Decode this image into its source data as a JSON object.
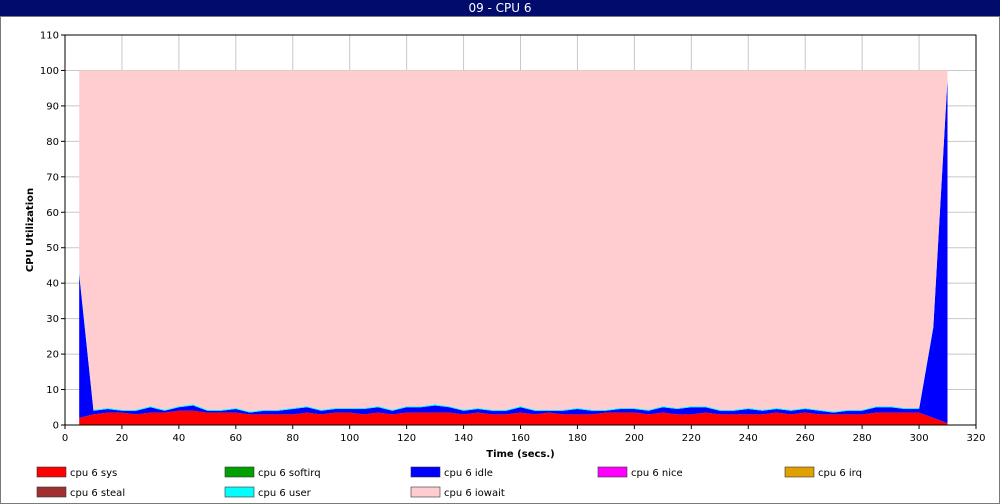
{
  "window": {
    "title": "09 - CPU 6"
  },
  "chart_data": {
    "type": "area",
    "stacked": true,
    "xlabel": "Time (secs.)",
    "ylabel": "CPU Utilization",
    "xlim": [
      0,
      320
    ],
    "ylim": [
      0,
      110
    ],
    "xticks": [
      0,
      20,
      40,
      60,
      80,
      100,
      120,
      140,
      160,
      180,
      200,
      220,
      240,
      260,
      280,
      300,
      320
    ],
    "yticks": [
      0,
      10,
      20,
      30,
      40,
      50,
      60,
      70,
      80,
      90,
      100,
      110
    ],
    "grid": true,
    "legend_position": "bottom",
    "x": [
      5,
      10,
      15,
      20,
      25,
      30,
      35,
      40,
      45,
      50,
      55,
      60,
      65,
      70,
      75,
      80,
      85,
      90,
      95,
      100,
      105,
      110,
      115,
      120,
      125,
      130,
      135,
      140,
      145,
      150,
      155,
      160,
      165,
      170,
      175,
      180,
      185,
      190,
      195,
      200,
      205,
      210,
      215,
      220,
      225,
      230,
      235,
      240,
      245,
      250,
      255,
      260,
      265,
      270,
      275,
      280,
      285,
      290,
      295,
      300,
      305,
      310
    ],
    "series": [
      {
        "name": "cpu 6 sys",
        "color": "#ff0000",
        "values": [
          2,
          3,
          3.5,
          3.5,
          3,
          3.5,
          3.5,
          4,
          4,
          3.5,
          3.5,
          3.5,
          3,
          3,
          3,
          3,
          3.5,
          3,
          3.5,
          3.5,
          3,
          3.5,
          3,
          3.5,
          3.5,
          3.5,
          3.5,
          3,
          3.5,
          3,
          3,
          3.5,
          3,
          3.5,
          3,
          3,
          3,
          3.5,
          3.5,
          3.5,
          3,
          3.5,
          3,
          3,
          3.5,
          3,
          3,
          3,
          3,
          3.5,
          3,
          3.5,
          3,
          3,
          3,
          3,
          3.5,
          3.5,
          3.5,
          3.5,
          2,
          0.5
        ]
      },
      {
        "name": "cpu 6 softirq",
        "color": "#00a000",
        "values": [
          0,
          0,
          0,
          0,
          0,
          0,
          0,
          0,
          0,
          0,
          0,
          0,
          0,
          0,
          0,
          0,
          0,
          0,
          0,
          0,
          0,
          0,
          0,
          0,
          0,
          0,
          0,
          0,
          0,
          0,
          0,
          0,
          0,
          0,
          0,
          0,
          0,
          0,
          0,
          0,
          0,
          0,
          0,
          0,
          0,
          0,
          0,
          0,
          0,
          0,
          0,
          0,
          0,
          0,
          0,
          0,
          0,
          0,
          0,
          0,
          0,
          0
        ]
      },
      {
        "name": "cpu 6 idle",
        "color": "#0000ff",
        "values": [
          40.5,
          1,
          1,
          0.5,
          1,
          1.5,
          0.5,
          1,
          1.5,
          0.5,
          0.5,
          1,
          0.5,
          1,
          1,
          1.5,
          1.5,
          1,
          1,
          1,
          1.5,
          1.5,
          1,
          1.5,
          1.5,
          2,
          1.5,
          1,
          1,
          1,
          1,
          1.5,
          1,
          0.5,
          1,
          1.5,
          1,
          0.5,
          1,
          1,
          1,
          1.5,
          1.5,
          2,
          1.5,
          1,
          1,
          1.5,
          1,
          1,
          1,
          1,
          1,
          0.5,
          1,
          1,
          1.5,
          1.5,
          1,
          1,
          25.5,
          97
        ]
      },
      {
        "name": "cpu 6 nice",
        "color": "#ff00ff",
        "values": [
          0,
          0,
          0,
          0,
          0,
          0,
          0,
          0,
          0,
          0,
          0,
          0,
          0,
          0,
          0,
          0,
          0,
          0,
          0,
          0,
          0,
          0,
          0,
          0,
          0,
          0,
          0,
          0,
          0,
          0,
          0,
          0,
          0,
          0,
          0,
          0,
          0,
          0,
          0,
          0,
          0,
          0,
          0,
          0,
          0,
          0,
          0,
          0,
          0,
          0,
          0,
          0,
          0,
          0,
          0,
          0,
          0,
          0,
          0,
          0,
          0,
          0
        ]
      },
      {
        "name": "cpu 6 irq",
        "color": "#e0a000",
        "values": [
          0,
          0,
          0,
          0,
          0,
          0,
          0,
          0,
          0,
          0,
          0,
          0,
          0,
          0,
          0,
          0,
          0,
          0,
          0,
          0,
          0,
          0,
          0,
          0,
          0,
          0,
          0,
          0,
          0,
          0,
          0,
          0,
          0,
          0,
          0,
          0,
          0,
          0,
          0,
          0,
          0,
          0,
          0,
          0,
          0,
          0,
          0,
          0,
          0,
          0,
          0,
          0,
          0,
          0,
          0,
          0,
          0,
          0,
          0,
          0,
          0,
          0
        ]
      },
      {
        "name": "cpu 6 steal",
        "color": "#a03030",
        "values": [
          0,
          0,
          0,
          0,
          0,
          0,
          0,
          0,
          0,
          0,
          0,
          0,
          0,
          0,
          0,
          0,
          0,
          0,
          0,
          0,
          0,
          0,
          0,
          0,
          0,
          0,
          0,
          0,
          0,
          0,
          0,
          0,
          0,
          0,
          0,
          0,
          0,
          0,
          0,
          0,
          0,
          0,
          0,
          0,
          0,
          0,
          0,
          0,
          0,
          0,
          0,
          0,
          0,
          0,
          0,
          0,
          0,
          0,
          0,
          0,
          0,
          0
        ]
      },
      {
        "name": "cpu 6 user",
        "color": "#00ffff",
        "values": [
          0.5,
          0.3,
          0.3,
          0.3,
          0.3,
          0.3,
          0.3,
          0.3,
          0.3,
          0.3,
          0.3,
          0.3,
          0.3,
          0.3,
          0.3,
          0.3,
          0.3,
          0.3,
          0.3,
          0.3,
          0.3,
          0.3,
          0.3,
          0.3,
          0.3,
          0.3,
          0.3,
          0.3,
          0.3,
          0.3,
          0.3,
          0.3,
          0.3,
          0.3,
          0.3,
          0.3,
          0.3,
          0.3,
          0.3,
          0.3,
          0.3,
          0.3,
          0.3,
          0.3,
          0.3,
          0.3,
          0.3,
          0.3,
          0.3,
          0.3,
          0.3,
          0.3,
          0.3,
          0.3,
          0.3,
          0.3,
          0.3,
          0.3,
          0.3,
          0.3,
          0.3,
          0.5
        ]
      },
      {
        "name": "cpu 6 iowait",
        "color": "#ffccd0",
        "values": [
          57,
          95.7,
          95.2,
          95.7,
          95.7,
          94.7,
          95.7,
          94.7,
          94.2,
          95.7,
          95.7,
          95.2,
          96.2,
          95.7,
          95.7,
          95.2,
          94.7,
          95.7,
          95.2,
          95.2,
          95.2,
          94.7,
          95.7,
          94.7,
          94.7,
          94.2,
          94.7,
          95.7,
          95.2,
          95.7,
          95.7,
          94.7,
          95.7,
          95.7,
          95.7,
          95.2,
          95.7,
          95.7,
          95.2,
          95.2,
          95.7,
          94.7,
          95.2,
          94.7,
          94.7,
          95.7,
          95.7,
          95.2,
          95.7,
          95.2,
          95.7,
          95.2,
          95.7,
          96.2,
          95.7,
          95.7,
          94.7,
          94.7,
          95.2,
          95.2,
          72.2,
          2
        ]
      }
    ]
  }
}
